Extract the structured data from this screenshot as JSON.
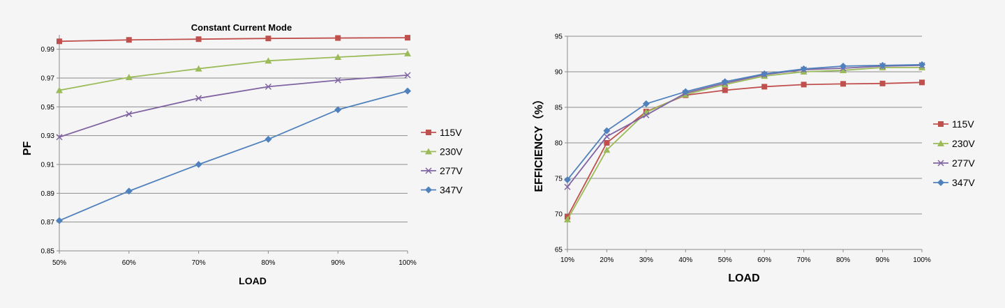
{
  "chart_data": [
    {
      "type": "line",
      "title": "Constant Current Mode",
      "xlabel": "LOAD",
      "ylabel": "PF",
      "x": [
        "50%",
        "60%",
        "70%",
        "80%",
        "90%",
        "100%"
      ],
      "yticks": [
        "0.85",
        "0.87",
        "0.89",
        "0.91",
        "0.93",
        "0.95",
        "0.97",
        "0.99"
      ],
      "ylim": [
        0.85,
        1.0
      ],
      "grid": true,
      "legend": "right",
      "series": [
        {
          "name": "115V",
          "color": "#c0504d",
          "marker": "square",
          "values": [
            0.9955,
            0.9965,
            0.997,
            0.9975,
            0.9978,
            0.998
          ]
        },
        {
          "name": "230V",
          "color": "#9bbb59",
          "marker": "triangle",
          "values": [
            0.9615,
            0.9705,
            0.9765,
            0.982,
            0.9845,
            0.987
          ]
        },
        {
          "name": "277V",
          "color": "#8064a2",
          "marker": "x",
          "values": [
            0.929,
            0.945,
            0.956,
            0.964,
            0.9685,
            0.972
          ]
        },
        {
          "name": "347V",
          "color": "#4f81bd",
          "marker": "diamond",
          "values": [
            0.871,
            0.8915,
            0.91,
            0.9275,
            0.948,
            0.961
          ]
        }
      ]
    },
    {
      "type": "line",
      "title": "",
      "xlabel": "LOAD",
      "ylabel": "EFFICIENCY（%）",
      "x": [
        "10%",
        "20%",
        "30%",
        "40%",
        "50%",
        "60%",
        "70%",
        "80%",
        "90%",
        "100%"
      ],
      "yticks": [
        "65",
        "70",
        "75",
        "80",
        "85",
        "90",
        "95"
      ],
      "ylim": [
        65,
        95
      ],
      "grid": true,
      "legend": "right",
      "series": [
        {
          "name": "115V",
          "color": "#c0504d",
          "marker": "square",
          "values": [
            69.6,
            80.0,
            84.4,
            86.7,
            87.4,
            87.9,
            88.2,
            88.3,
            88.35,
            88.5
          ]
        },
        {
          "name": "230V",
          "color": "#9bbb59",
          "marker": "triangle",
          "values": [
            69.2,
            79.0,
            84.3,
            86.8,
            88.2,
            89.4,
            90.0,
            90.2,
            90.6,
            90.6
          ]
        },
        {
          "name": "277V",
          "color": "#8064a2",
          "marker": "x",
          "values": [
            73.8,
            80.9,
            83.9,
            87.0,
            88.4,
            89.6,
            90.3,
            90.5,
            90.8,
            90.9
          ]
        },
        {
          "name": "347V",
          "color": "#4f81bd",
          "marker": "diamond",
          "values": [
            74.8,
            81.7,
            85.5,
            87.2,
            88.6,
            89.7,
            90.4,
            90.8,
            90.9,
            91.0
          ]
        }
      ]
    }
  ]
}
